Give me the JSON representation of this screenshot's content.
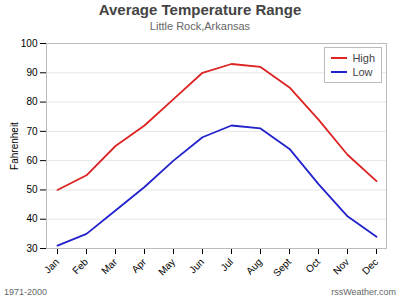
{
  "chart_data": {
    "type": "line",
    "title": "Average Temperature Range",
    "subtitle": "Little Rock,Arkansas",
    "ylabel": "Fahrenheit",
    "annotations": [
      "1971-2000",
      "rssWeather.com"
    ],
    "categories": [
      "Jan",
      "Feb",
      "Mar",
      "Apr",
      "May",
      "Jun",
      "Jul",
      "Aug",
      "Sept",
      "Oct",
      "Nov",
      "Dec"
    ],
    "series": [
      {
        "name": "High",
        "color": "#dd2222",
        "values": [
          50,
          55,
          65,
          72,
          81,
          90,
          93,
          92,
          85,
          74,
          62,
          53
        ]
      },
      {
        "name": "Low",
        "color": "#2222cc",
        "values": [
          31,
          35,
          43,
          51,
          60,
          68,
          72,
          71,
          64,
          52,
          41,
          34
        ]
      }
    ],
    "ylim": [
      30,
      100
    ],
    "yticks": [
      30,
      40,
      50,
      60,
      70,
      80,
      90,
      100
    ],
    "grid": true,
    "legend": "upper right"
  }
}
